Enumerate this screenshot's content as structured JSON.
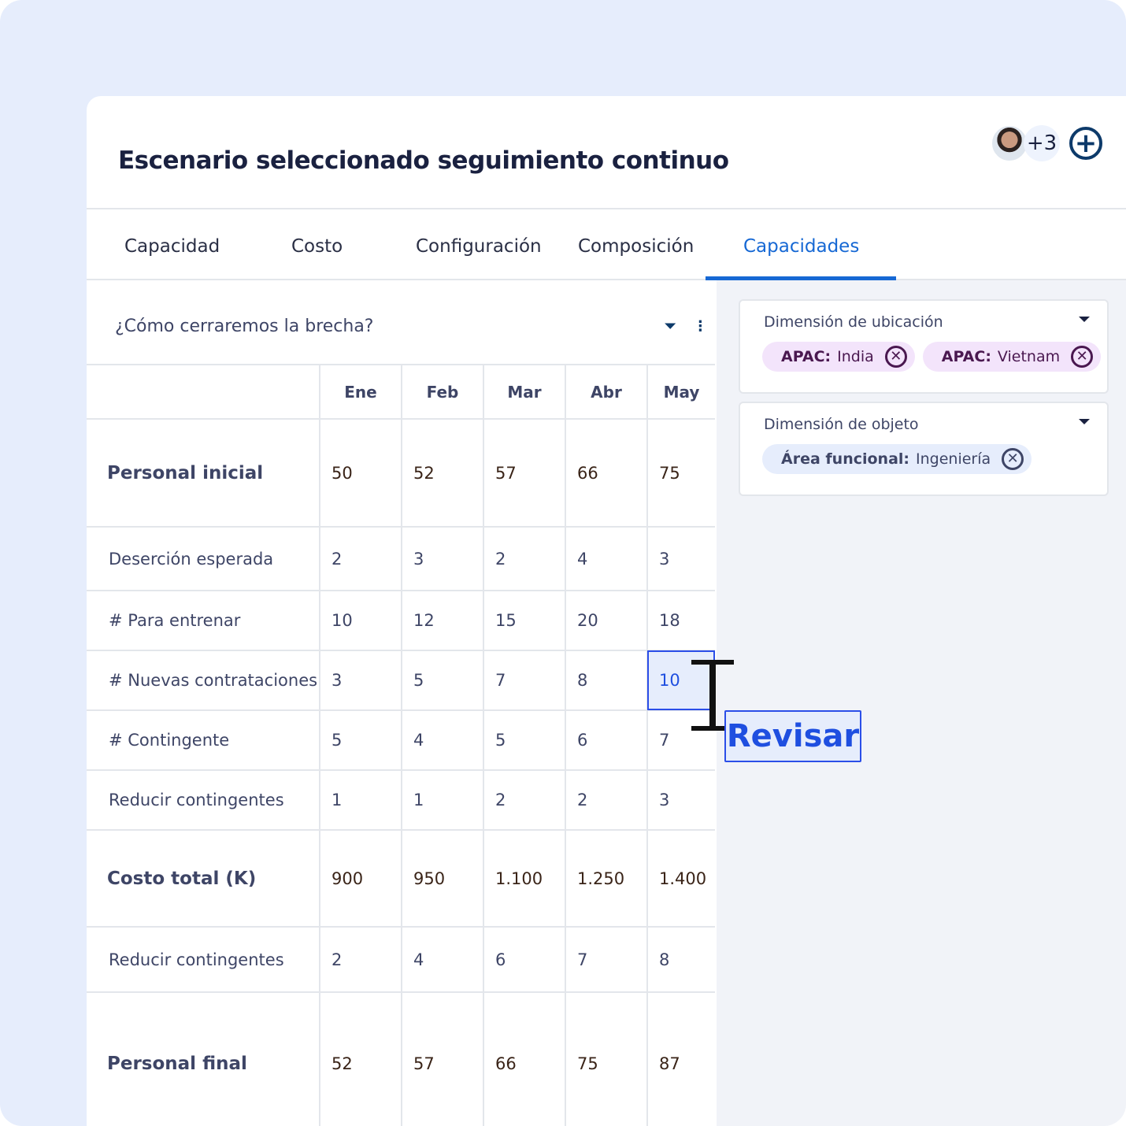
{
  "header": {
    "title": "Escenario seleccionado seguimiento continuo",
    "avatar_more": "+3",
    "add_icon": "plus-circle-icon"
  },
  "tabs": [
    {
      "label": "Capacidad"
    },
    {
      "label": "Costo"
    },
    {
      "label": "Configuración"
    },
    {
      "label": "Composición"
    },
    {
      "label": "Capacidades",
      "active": true
    }
  ],
  "colors": {
    "accent": "#1668d4",
    "selection": "#2b4ee8",
    "chip_purple": "#f3e4fb",
    "chip_blue": "#e6edfc"
  },
  "section": {
    "title": "¿Cómo cerraremos la brecha?"
  },
  "table": {
    "columns": [
      "Ene",
      "Feb",
      "Mar",
      "Abr",
      "May"
    ],
    "rows": [
      {
        "label": "Personal inicial",
        "values": [
          "50",
          "52",
          "57",
          "66",
          "75"
        ]
      },
      {
        "label": "Deserción esperada",
        "values": [
          "2",
          "3",
          "2",
          "4",
          "3"
        ]
      },
      {
        "label": "# Para entrenar",
        "values": [
          "10",
          "12",
          "15",
          "20",
          "18"
        ]
      },
      {
        "label": "# Nuevas contrataciones",
        "values": [
          "3",
          "5",
          "7",
          "8",
          "10"
        ]
      },
      {
        "label": "# Contingente",
        "values": [
          "5",
          "4",
          "5",
          "6",
          "7"
        ]
      },
      {
        "label": "Reducir contingentes",
        "values": [
          "1",
          "1",
          "2",
          "2",
          "3"
        ]
      },
      {
        "label": "Costo total (K)",
        "values": [
          "900",
          "950",
          "1.100",
          "1.250",
          "1.400"
        ]
      },
      {
        "label": "Reducir contingentes",
        "values": [
          "2",
          "4",
          "6",
          "7",
          "8"
        ]
      },
      {
        "label": "Personal final",
        "values": [
          "52",
          "57",
          "66",
          "75",
          "87"
        ]
      }
    ]
  },
  "tooltip": {
    "label": "Revisar"
  },
  "filters": [
    {
      "label": "Dimensión de ubicación",
      "chips": [
        {
          "key": "APAC:",
          "value": "India"
        },
        {
          "key": "APAC:",
          "value": "Vietnam"
        }
      ]
    },
    {
      "label": "Dimensión de objeto",
      "chips": [
        {
          "key": "Área funcional:",
          "value": "Ingeniería"
        }
      ]
    }
  ]
}
